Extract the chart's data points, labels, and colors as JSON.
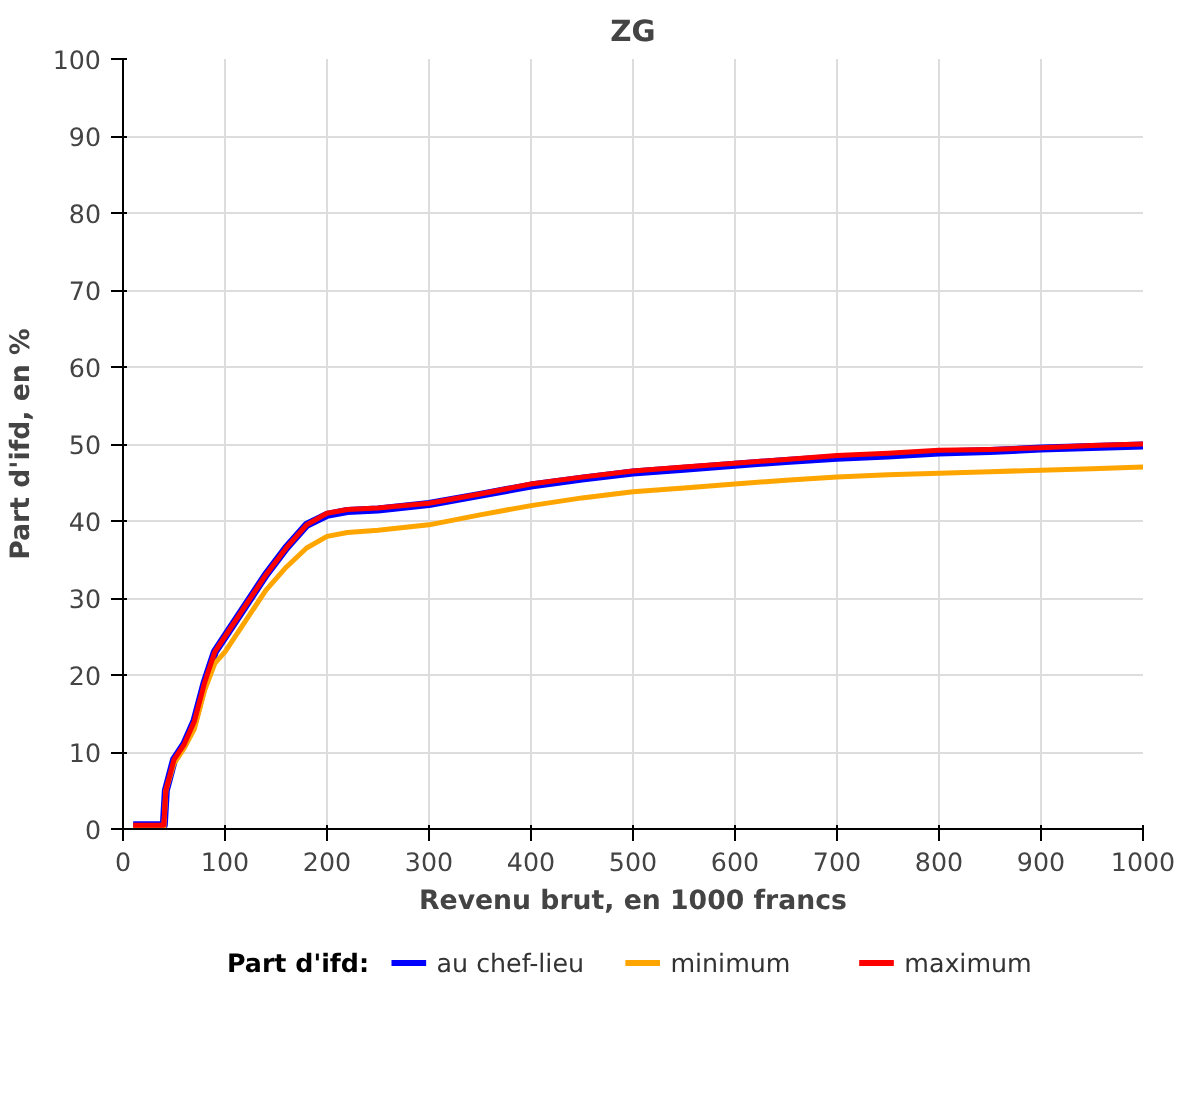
{
  "chart_data": {
    "type": "line",
    "title": "ZG",
    "xlabel": "Revenu brut, en 1000 francs",
    "ylabel": "Part d'ifd, en %",
    "legend_title": "Part d'ifd:",
    "legend": "bottom",
    "grid": true,
    "line_style": "solid",
    "xlim": [
      0,
      1000
    ],
    "xticks": [
      0,
      100,
      200,
      300,
      400,
      500,
      600,
      700,
      800,
      900,
      1000
    ],
    "ylim": [
      0,
      100
    ],
    "yticks": [
      0,
      10,
      20,
      30,
      40,
      50,
      60,
      70,
      80,
      90,
      100
    ],
    "x": [
      10,
      40,
      42,
      50,
      60,
      70,
      80,
      90,
      100,
      120,
      140,
      160,
      180,
      200,
      220,
      250,
      300,
      350,
      400,
      450,
      500,
      550,
      600,
      650,
      700,
      750,
      800,
      850,
      900,
      950,
      1000
    ],
    "series": [
      {
        "name": "au chef-lieu",
        "color": "#0000ff",
        "values": [
          0.5,
          0.5,
          5,
          9,
          11,
          14,
          19,
          23,
          25,
          29,
          33,
          36.5,
          39.5,
          40.8,
          41.3,
          41.5,
          42.2,
          43.4,
          44.6,
          45.5,
          46.3,
          46.8,
          47.3,
          47.8,
          48.2,
          48.5,
          48.9,
          49.1,
          49.4,
          49.6,
          49.8
        ]
      },
      {
        "name": "minimum",
        "color": "#ffa500",
        "values": [
          0,
          0,
          5,
          8.5,
          10.5,
          13,
          18,
          21.5,
          23,
          27,
          31,
          34,
          36.5,
          38,
          38.5,
          38.8,
          39.5,
          40.8,
          42,
          43,
          43.8,
          44.3,
          44.8,
          45.3,
          45.7,
          46,
          46.2,
          46.4,
          46.6,
          46.8,
          47
        ]
      },
      {
        "name": "maximum",
        "color": "#ff0000",
        "values": [
          0.5,
          0.5,
          5,
          9,
          11,
          14,
          19,
          23,
          25,
          29,
          33,
          36.5,
          39.5,
          41,
          41.5,
          41.7,
          42.3,
          43.5,
          44.8,
          45.7,
          46.5,
          47,
          47.5,
          48,
          48.5,
          48.8,
          49.2,
          49.3,
          49.5,
          49.8,
          50
        ]
      }
    ]
  }
}
